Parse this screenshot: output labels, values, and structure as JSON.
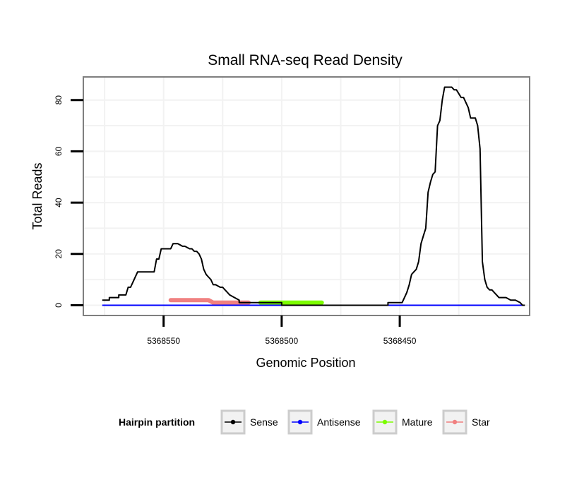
{
  "chart_data": {
    "type": "line",
    "title": "Small RNA-seq Read Density",
    "xlabel": "Genomic Position",
    "ylabel": "Total Reads",
    "x_reversed": true,
    "xlim": [
      5368584,
      5368395
    ],
    "ylim": [
      -4,
      89
    ],
    "xticks": [
      5368550,
      5368500,
      5368450
    ],
    "xtick_labels": [
      "5368550",
      "5368500",
      "5368450"
    ],
    "yticks": [
      0,
      20,
      40,
      60,
      80
    ],
    "ytick_labels": [
      "0",
      "20",
      "40",
      "60",
      "80"
    ],
    "legend": {
      "title": "Hairpin partition",
      "position": "bottom",
      "entries": [
        {
          "label": "Sense",
          "color": "#000000"
        },
        {
          "label": "Antisense",
          "color": "#0000ff"
        },
        {
          "label": "Mature",
          "color": "#7cfc00"
        },
        {
          "label": "Star",
          "color": "#f08080"
        }
      ]
    },
    "series": [
      {
        "name": "Sense",
        "color": "#000000",
        "x": [
          5368576,
          5368573,
          5368573,
          5368569,
          5368569,
          5368566,
          5368565,
          5368564,
          5368563,
          5368561,
          5368554,
          5368553,
          5368552,
          5368551,
          5368547,
          5368546,
          5368544,
          5368542,
          5368541,
          5368539,
          5368538,
          5368537,
          5368536,
          5368535,
          5368534,
          5368533,
          5368532,
          5368531,
          5368530,
          5368529,
          5368528,
          5368526,
          5368525,
          5368524,
          5368523,
          5368522,
          5368518,
          5368518,
          5368500,
          5368500,
          5368455,
          5368455,
          5368450,
          5368449,
          5368448,
          5368447,
          5368446,
          5368445,
          5368444,
          5368443,
          5368442,
          5368441,
          5368440,
          5368439,
          5368438,
          5368437,
          5368436,
          5368435,
          5368434,
          5368433,
          5368432,
          5368431,
          5368428,
          5368427,
          5368426,
          5368424,
          5368423,
          5368421,
          5368420,
          5368418,
          5368417,
          5368416,
          5368415,
          5368414,
          5368413,
          5368412,
          5368411,
          5368410,
          5368409,
          5368408,
          5368407,
          5368406,
          5368405,
          5368403,
          5368402,
          5368401,
          5368399,
          5368398,
          5368397
        ],
        "y": [
          2,
          2,
          3,
          3,
          4,
          4,
          7,
          7,
          9,
          13,
          13,
          18,
          18,
          22,
          22,
          24,
          24,
          23,
          23,
          22,
          22,
          21,
          21,
          20,
          18,
          14,
          12,
          11,
          10,
          8,
          8,
          7,
          7,
          6,
          5,
          4,
          2,
          1,
          1,
          0,
          0,
          1,
          1,
          1,
          3,
          5,
          8,
          12,
          13,
          14,
          17,
          24,
          27,
          30,
          44,
          48,
          51,
          52,
          70,
          72,
          80,
          85,
          85,
          84,
          84,
          81,
          81,
          77,
          73,
          73,
          70,
          61,
          17,
          10,
          7,
          6,
          6,
          5,
          4,
          3,
          3,
          3,
          3,
          2,
          2,
          2,
          1,
          0,
          0
        ]
      },
      {
        "name": "Antisense",
        "color": "#0000ff",
        "x": [
          5368576,
          5368398
        ],
        "y": [
          0,
          0
        ]
      },
      {
        "name": "Mature",
        "color": "#7cfc00",
        "x": [
          5368509,
          5368483
        ],
        "y": [
          1,
          1
        ]
      },
      {
        "name": "Star",
        "color": "#f08080",
        "x": [
          5368547,
          5368531,
          5368529,
          5368514
        ],
        "y": [
          2,
          2,
          1,
          1
        ]
      }
    ]
  }
}
